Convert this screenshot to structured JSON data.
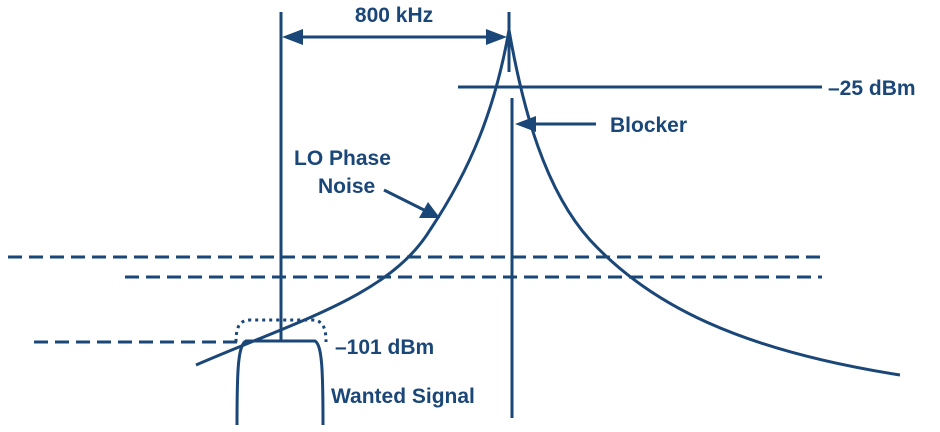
{
  "labels": {
    "spacing": "800 kHz",
    "blocker_level": "–25 dBm",
    "blocker": "Blocker",
    "lo_phase_noise_line1": "LO Phase",
    "lo_phase_noise_line2": "Noise",
    "wanted_level": "–101 dBm",
    "wanted_signal": "Wanted Signal"
  },
  "colors": {
    "ink": "#1a4778",
    "background": "#ffffff"
  }
}
